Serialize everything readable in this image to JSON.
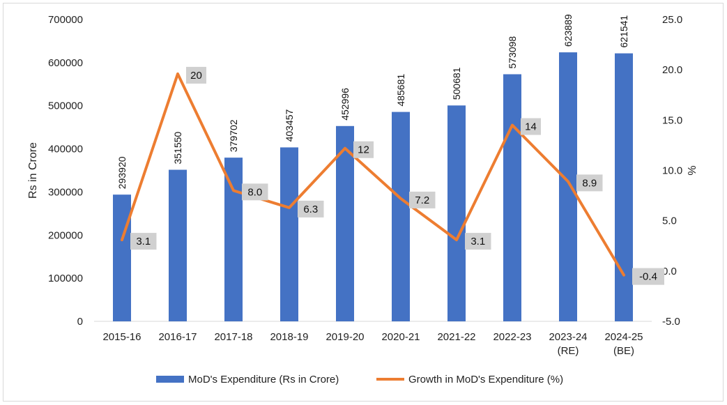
{
  "chart_data": {
    "type": "bar",
    "categories": [
      "2015-16",
      "2016-17",
      "2017-18",
      "2018-19",
      "2019-20",
      "2020-21",
      "2021-22",
      "2022-23",
      "2023-24\n(RE)",
      "2024-25\n(BE)"
    ],
    "series": [
      {
        "name": "MoD's Expenditure (Rs in Crore)",
        "type": "bar",
        "axis": "left",
        "color": "#4472C4",
        "values": [
          293920,
          351550,
          379702,
          403457,
          452996,
          485681,
          500681,
          573098,
          623889,
          621541
        ],
        "labels": [
          "293920",
          "351550",
          "379702",
          "403457",
          "452996",
          "485681",
          "500681",
          "573098",
          "623889",
          "621541"
        ]
      },
      {
        "name": "Growth in MoD's Expenditure (%)",
        "type": "line",
        "axis": "right",
        "color": "#ED7D31",
        "values": [
          3.1,
          19.6,
          8.0,
          6.3,
          12.2,
          7.2,
          3.1,
          14.5,
          8.9,
          -0.4
        ],
        "labels": [
          "3.1",
          "20",
          "8.0",
          "6.3",
          "12",
          "7.2",
          "3.1",
          "14",
          "8.9",
          "-0.4"
        ]
      }
    ],
    "ylabel": "Rs in Crore",
    "ylabel_right": "%",
    "ylim": [
      0,
      700000
    ],
    "ylim_right": [
      -5.0,
      25.0
    ],
    "yticks": [
      "0",
      "100000",
      "200000",
      "300000",
      "400000",
      "500000",
      "600000",
      "700000"
    ],
    "yticks_right": [
      "-5.0",
      "0.0",
      "5.0",
      "10.0",
      "15.0",
      "20.0",
      "25.0"
    ],
    "grid": false,
    "legend_position": "bottom"
  }
}
